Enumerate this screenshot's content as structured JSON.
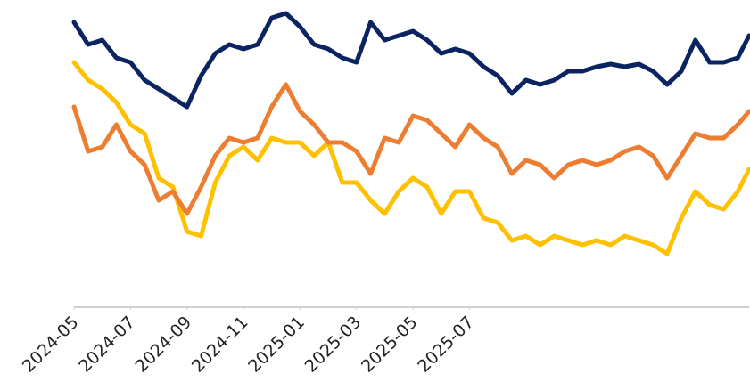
{
  "chart_data": {
    "type": "line",
    "x": [
      0,
      0.5,
      1,
      1.5,
      2,
      2.5,
      3,
      3.5,
      4,
      4.5,
      5,
      5.5,
      6,
      6.5,
      7,
      7.5,
      8,
      8.5,
      9,
      9.5,
      10,
      10.5,
      11,
      11.5,
      12,
      12.5,
      13,
      13.5,
      14,
      14.5,
      15,
      15.5,
      16,
      16.5,
      17,
      17.5,
      18,
      18.5,
      19,
      19.5,
      20,
      20.5,
      21,
      21.5,
      22,
      22.5,
      23,
      23.5,
      23.9
    ],
    "xlim": [
      0,
      23.9
    ],
    "xticks": [
      {
        "value": 0,
        "label": "2024-05"
      },
      {
        "value": 2,
        "label": "2024-07"
      },
      {
        "value": 4,
        "label": "2024-09"
      },
      {
        "value": 6,
        "label": "2024-11"
      },
      {
        "value": 8,
        "label": "2025-01"
      },
      {
        "value": 10,
        "label": "2025-03"
      },
      {
        "value": 12,
        "label": "2025-05"
      },
      {
        "value": 14,
        "label": "2025-07"
      }
    ],
    "ylim": [
      0,
      335
    ],
    "series": [
      {
        "color": "#ffc000",
        "values": [
          275,
          255,
          245,
          230,
          205,
          195,
          145,
          135,
          85,
          80,
          140,
          170,
          180,
          165,
          190,
          185,
          185,
          170,
          185,
          140,
          140,
          120,
          105,
          130,
          145,
          135,
          105,
          130,
          130,
          100,
          95,
          75,
          80,
          70,
          80,
          75,
          70,
          75,
          70,
          80,
          75,
          70,
          60,
          100,
          130,
          115,
          110,
          130,
          155
        ]
      },
      {
        "color": "#ed7d31",
        "values": [
          225,
          175,
          180,
          205,
          175,
          160,
          120,
          130,
          105,
          135,
          170,
          190,
          185,
          190,
          225,
          250,
          220,
          205,
          185,
          185,
          175,
          150,
          190,
          185,
          215,
          210,
          195,
          180,
          205,
          190,
          180,
          150,
          165,
          160,
          145,
          160,
          165,
          160,
          165,
          175,
          180,
          170,
          145,
          170,
          195,
          190,
          190,
          205,
          220
        ]
      },
      {
        "color": "#0b2461",
        "values": [
          320,
          295,
          300,
          280,
          275,
          255,
          245,
          235,
          225,
          260,
          285,
          295,
          290,
          295,
          325,
          330,
          315,
          295,
          290,
          280,
          275,
          320,
          300,
          305,
          310,
          300,
          285,
          290,
          285,
          270,
          260,
          240,
          255,
          250,
          255,
          265,
          265,
          270,
          273,
          270,
          273,
          265,
          250,
          265,
          300,
          275,
          275,
          280,
          305
        ]
      }
    ]
  }
}
